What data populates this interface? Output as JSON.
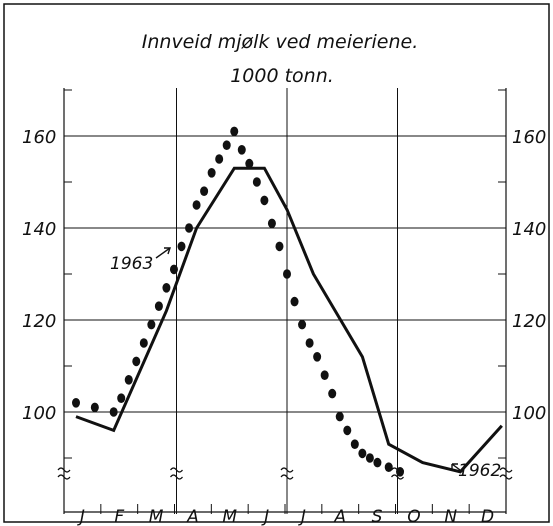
{
  "chart_data": {
    "type": "line",
    "title": "Innveid mjølk ved meieriene.",
    "subtitle": "1000 tonn.",
    "categories": [
      "J",
      "F",
      "M",
      "A",
      "M",
      "J",
      "J",
      "A",
      "S",
      "O",
      "N",
      "D"
    ],
    "y_ticks": [
      "100",
      "120",
      "140",
      "160"
    ],
    "ylim": [
      82,
      170
    ],
    "grid": true,
    "series": [
      {
        "name": "1962",
        "style": "solid",
        "x": [
          0,
          1,
          2.4,
          3.2,
          4.2,
          5.0,
          5.6,
          6.3,
          7.6,
          8.3,
          9.2,
          10.2,
          11.3
        ],
        "values": [
          99,
          96,
          122,
          140,
          153,
          153,
          144,
          130,
          112,
          93,
          89,
          87,
          97
        ]
      },
      {
        "name": "1963",
        "style": "dots",
        "x": [
          0,
          0.5,
          1.0,
          1.2,
          1.4,
          1.6,
          1.8,
          2.0,
          2.2,
          2.4,
          2.6,
          2.8,
          3.0,
          3.2,
          3.4,
          3.6,
          3.8,
          4.0,
          4.2,
          4.4,
          4.6,
          4.8,
          5.0,
          5.2,
          5.4,
          5.6,
          5.8,
          6.0,
          6.2,
          6.4,
          6.6,
          6.8,
          7.0,
          7.2,
          7.4,
          7.6,
          7.8,
          8.0,
          8.3,
          8.6
        ],
        "values": [
          102,
          101,
          100,
          103,
          107,
          111,
          115,
          119,
          123,
          127,
          131,
          136,
          140,
          145,
          148,
          152,
          155,
          158,
          161,
          157,
          154,
          150,
          146,
          141,
          136,
          130,
          124,
          119,
          115,
          112,
          108,
          104,
          99,
          96,
          93,
          91,
          90,
          89,
          88,
          87
        ]
      }
    ],
    "annotations": [
      {
        "text": "1963",
        "series": "1963"
      },
      {
        "text": "1962",
        "series": "1962"
      }
    ]
  }
}
